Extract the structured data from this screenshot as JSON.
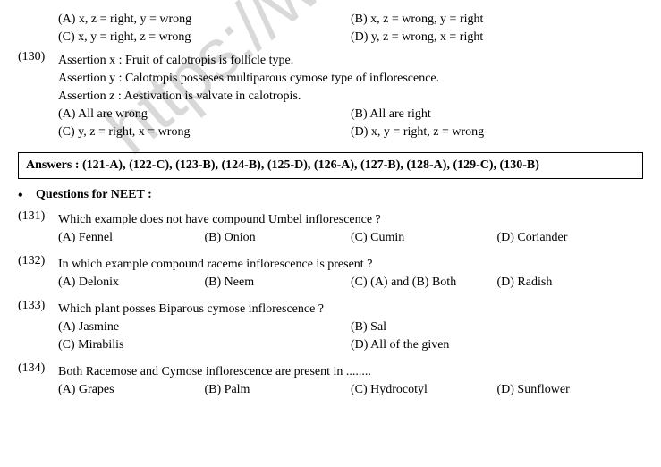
{
  "watermark": "https://www.stu",
  "q129_opts": {
    "a": "(A) x, z = right, y = wrong",
    "b": "(B)   x, z = wrong, y = right",
    "c": "(C) x, y = right, z = wrong",
    "d": "(D)   y, z = wrong, x = right"
  },
  "q130": {
    "num": "(130)",
    "l1": "Assertion x : Fruit of calotropis is follicle type.",
    "l2": "Assertion y : Calotropis posseses multiparous cymose type of inflorescence.",
    "l3": "Assertion z : Aestivation is valvate in calotropis.",
    "a": "(A) All are wrong",
    "b": "(B)   All are right",
    "c": "(C) y, z = right, x = wrong",
    "d": "(D)   x, y = right, z = wrong"
  },
  "answers": "Answers : (121-A), (122-C), (123-B), (124-B), (125-D), (126-A), (127-B), (128-A), (129-C), (130-B)",
  "section": "Questions for NEET :",
  "q131": {
    "num": "(131)",
    "text": "Which example does not have compound Umbel inflorescence ?",
    "a": "(A) Fennel",
    "b": "(B) Onion",
    "c": "(C) Cumin",
    "d": "(D) Coriander"
  },
  "q132": {
    "num": "(132)",
    "text": "In which example compound raceme inflorescence is present ?",
    "a": "(A) Delonix",
    "b": "(B) Neem",
    "c": "(C) (A) and (B) Both",
    "d": "(D) Radish"
  },
  "q133": {
    "num": "(133)",
    "text": "Which plant posses Biparous cymose inflorescence ?",
    "a": "(A) Jasmine",
    "b": "(B) Sal",
    "c": "(C) Mirabilis",
    "d": "(D) All of the given"
  },
  "q134": {
    "num": "(134)",
    "text": "Both Racemose and Cymose inflorescence are present in ........",
    "a": "(A) Grapes",
    "b": "(B) Palm",
    "c": "(C) Hydrocotyl",
    "d": "(D) Sunflower"
  }
}
